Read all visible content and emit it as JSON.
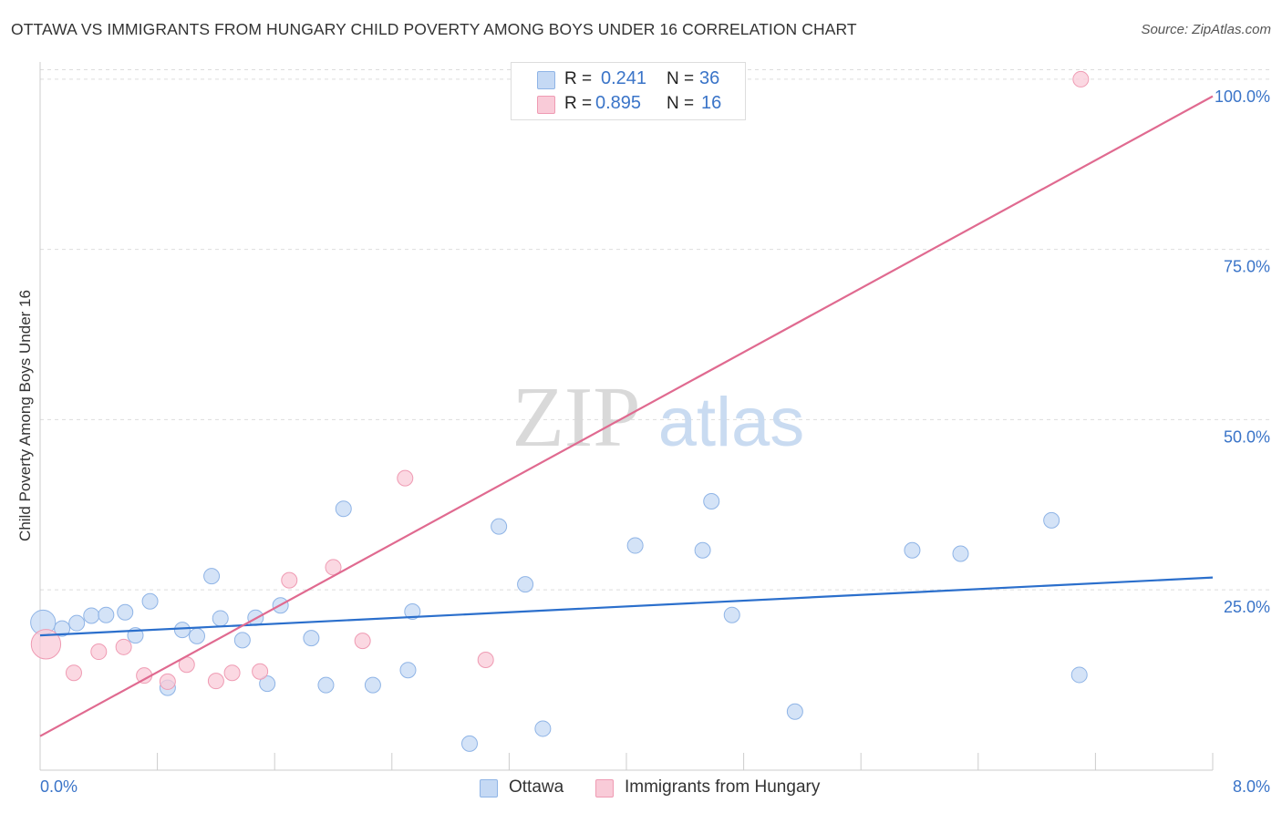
{
  "title": "OTTAWA VS IMMIGRANTS FROM HUNGARY CHILD POVERTY AMONG BOYS UNDER 16 CORRELATION CHART",
  "source": "Source: ZipAtlas.com",
  "watermark": {
    "zip": "ZIP",
    "atlas": "atlas"
  },
  "colors": {
    "ottawa_fill": "#c5d9f4",
    "ottawa_stroke": "#8fb4e6",
    "ottawa_line": "#2b6fcc",
    "hungary_fill": "#f9cbd8",
    "hungary_stroke": "#ef9bb3",
    "hungary_line": "#e06a90",
    "axis_text": "#3a74c8",
    "grid": "#dddddd"
  },
  "legend": {
    "rows": [
      {
        "r_label": "R =",
        "r_value": "0.241",
        "n_label": "N =",
        "n_value": "36"
      },
      {
        "r_label": "R =",
        "r_value": "0.895",
        "n_label": "N =",
        "n_value": "16"
      }
    ]
  },
  "chart_data": {
    "type": "scatter",
    "title": "OTTAWA VS IMMIGRANTS FROM HUNGARY CHILD POVERTY AMONG BOYS UNDER 16 CORRELATION CHART",
    "xlabel": "",
    "ylabel": "Child Poverty Among Boys Under 16",
    "xlim": [
      0,
      8
    ],
    "ylim": [
      -1.5,
      102
    ],
    "x_tick_labels": {
      "min": "0.0%",
      "max": "8.0%"
    },
    "y_ticks": [
      25,
      50,
      75,
      100
    ],
    "y_tick_labels": [
      "25.0%",
      "50.0%",
      "75.0%",
      "100.0%"
    ],
    "grid": true,
    "legend_position": "top-center",
    "series": [
      {
        "name": "Ottawa",
        "r": 0.241,
        "n": 36,
        "trend": {
          "x0": 0,
          "y0": 18.3,
          "x1": 8,
          "y1": 26.8
        },
        "points": [
          {
            "x": 0.02,
            "y": 20.2,
            "s": 1.6
          },
          {
            "x": 0.15,
            "y": 19.3,
            "s": 1
          },
          {
            "x": 0.25,
            "y": 20.1,
            "s": 1
          },
          {
            "x": 0.35,
            "y": 21.2,
            "s": 1
          },
          {
            "x": 0.45,
            "y": 21.3,
            "s": 1
          },
          {
            "x": 0.58,
            "y": 21.7,
            "s": 1
          },
          {
            "x": 0.65,
            "y": 18.3,
            "s": 1
          },
          {
            "x": 0.75,
            "y": 23.3,
            "s": 1
          },
          {
            "x": 0.87,
            "y": 10.6,
            "s": 1
          },
          {
            "x": 0.97,
            "y": 19.1,
            "s": 1
          },
          {
            "x": 1.07,
            "y": 18.2,
            "s": 1
          },
          {
            "x": 1.17,
            "y": 27.0,
            "s": 1
          },
          {
            "x": 1.23,
            "y": 20.8,
            "s": 1
          },
          {
            "x": 1.38,
            "y": 17.6,
            "s": 1
          },
          {
            "x": 1.47,
            "y": 20.9,
            "s": 1
          },
          {
            "x": 1.55,
            "y": 11.2,
            "s": 1
          },
          {
            "x": 1.64,
            "y": 22.7,
            "s": 1
          },
          {
            "x": 1.85,
            "y": 17.9,
            "s": 1
          },
          {
            "x": 1.95,
            "y": 11.0,
            "s": 1
          },
          {
            "x": 2.07,
            "y": 36.9,
            "s": 1
          },
          {
            "x": 2.27,
            "y": 11.0,
            "s": 1
          },
          {
            "x": 2.51,
            "y": 13.2,
            "s": 1
          },
          {
            "x": 2.54,
            "y": 21.8,
            "s": 1
          },
          {
            "x": 2.93,
            "y": 2.4,
            "s": 1
          },
          {
            "x": 3.13,
            "y": 34.3,
            "s": 1
          },
          {
            "x": 3.31,
            "y": 25.8,
            "s": 1
          },
          {
            "x": 3.43,
            "y": 4.6,
            "s": 1
          },
          {
            "x": 4.06,
            "y": 31.5,
            "s": 1
          },
          {
            "x": 4.52,
            "y": 30.8,
            "s": 1
          },
          {
            "x": 4.58,
            "y": 38.0,
            "s": 1
          },
          {
            "x": 4.72,
            "y": 21.3,
            "s": 1
          },
          {
            "x": 5.15,
            "y": 7.1,
            "s": 1
          },
          {
            "x": 5.95,
            "y": 30.8,
            "s": 1
          },
          {
            "x": 6.28,
            "y": 30.3,
            "s": 1
          },
          {
            "x": 6.9,
            "y": 35.2,
            "s": 1
          },
          {
            "x": 7.09,
            "y": 12.5,
            "s": 1
          }
        ]
      },
      {
        "name": "Immigrants from Hungary",
        "r": 0.895,
        "n": 16,
        "trend": {
          "x0": 0,
          "y0": 3.5,
          "x1": 8,
          "y1": 97.5
        },
        "points": [
          {
            "x": 0.04,
            "y": 17.0,
            "s": 1.9
          },
          {
            "x": 0.23,
            "y": 12.8,
            "s": 1
          },
          {
            "x": 0.4,
            "y": 15.9,
            "s": 1
          },
          {
            "x": 0.57,
            "y": 16.6,
            "s": 1
          },
          {
            "x": 0.71,
            "y": 12.4,
            "s": 1
          },
          {
            "x": 0.87,
            "y": 11.5,
            "s": 1
          },
          {
            "x": 1.0,
            "y": 14.0,
            "s": 1
          },
          {
            "x": 1.2,
            "y": 11.6,
            "s": 1
          },
          {
            "x": 1.31,
            "y": 12.8,
            "s": 1
          },
          {
            "x": 1.5,
            "y": 13.0,
            "s": 1
          },
          {
            "x": 1.7,
            "y": 26.4,
            "s": 1
          },
          {
            "x": 2.0,
            "y": 28.3,
            "s": 1
          },
          {
            "x": 2.2,
            "y": 17.5,
            "s": 1
          },
          {
            "x": 2.49,
            "y": 41.4,
            "s": 1
          },
          {
            "x": 3.04,
            "y": 14.7,
            "s": 1
          },
          {
            "x": 7.1,
            "y": 100.0,
            "s": 1
          }
        ]
      }
    ]
  },
  "bottom_legend": {
    "ottawa": "Ottawa",
    "hungary": "Immigrants from Hungary"
  }
}
